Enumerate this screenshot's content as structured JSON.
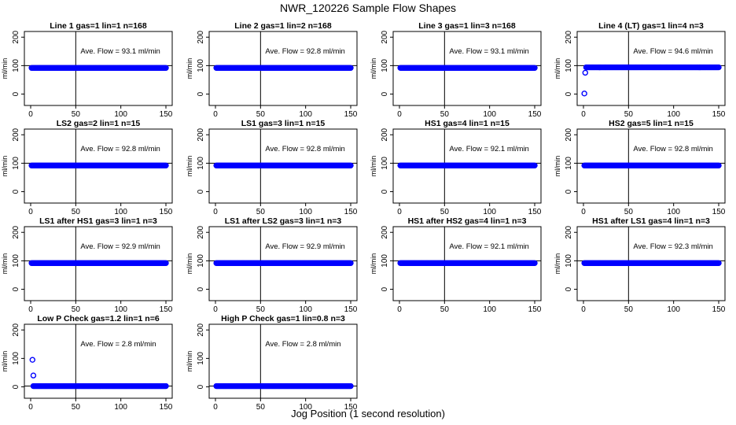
{
  "figure": {
    "title": "NWR_120226  Sample Flow Shapes",
    "xlabel": "Jog Position (1 second resolution)"
  },
  "colors": {
    "points": "#0000ff",
    "axes": "#000000",
    "background": "#ffffff"
  },
  "chart_data": [
    {
      "type": "scatter",
      "title": "Line 1 gas=1 lin=1 n=168",
      "ylabel": "ml/min",
      "annotation": "Ave. Flow = 93.1  ml/min",
      "xlim": [
        0,
        150
      ],
      "ylim": [
        -40,
        220
      ],
      "xticks": [
        "0",
        "50",
        "100",
        "150"
      ],
      "yticks": [
        "0",
        "100",
        "200"
      ],
      "vline_x": 50,
      "hline_y": 100,
      "x_range": [
        1,
        150
      ],
      "baseline_y": 92,
      "outliers": []
    },
    {
      "type": "scatter",
      "title": "Line 2 gas=1 lin=2 n=168",
      "ylabel": "ml/min",
      "annotation": "Ave. Flow = 92.8  ml/min",
      "xlim": [
        0,
        150
      ],
      "ylim": [
        -40,
        220
      ],
      "xticks": [
        "0",
        "50",
        "100",
        "150"
      ],
      "yticks": [
        "0",
        "100",
        "200"
      ],
      "vline_x": 50,
      "hline_y": 100,
      "x_range": [
        1,
        150
      ],
      "baseline_y": 92,
      "outliers": []
    },
    {
      "type": "scatter",
      "title": "Line 3 gas=1 lin=3 n=168",
      "ylabel": "ml/min",
      "annotation": "Ave. Flow = 93.1  ml/min",
      "xlim": [
        0,
        150
      ],
      "ylim": [
        -40,
        220
      ],
      "xticks": [
        "0",
        "50",
        "100",
        "150"
      ],
      "yticks": [
        "0",
        "100",
        "200"
      ],
      "vline_x": 50,
      "hline_y": 100,
      "x_range": [
        1,
        150
      ],
      "baseline_y": 92,
      "outliers": []
    },
    {
      "type": "scatter",
      "title": "Line 4 (LT) gas=1 lin=4 n=3",
      "ylabel": "ml/min",
      "annotation": "Ave. Flow = 94.6  ml/min",
      "xlim": [
        0,
        150
      ],
      "ylim": [
        -40,
        220
      ],
      "xticks": [
        "0",
        "50",
        "100",
        "150"
      ],
      "yticks": [
        "0",
        "100",
        "200"
      ],
      "vline_x": 50,
      "hline_y": 100,
      "x_range": [
        3,
        150
      ],
      "baseline_y": 94,
      "outliers": [
        [
          1,
          2
        ],
        [
          2,
          75
        ]
      ]
    },
    {
      "type": "scatter",
      "title": "LS2 gas=2 lin=1 n=15",
      "ylabel": "ml/min",
      "annotation": "Ave. Flow = 92.8  ml/min",
      "xlim": [
        0,
        150
      ],
      "ylim": [
        -40,
        220
      ],
      "xticks": [
        "0",
        "50",
        "100",
        "150"
      ],
      "yticks": [
        "0",
        "100",
        "200"
      ],
      "vline_x": 50,
      "hline_y": 100,
      "x_range": [
        1,
        150
      ],
      "baseline_y": 92,
      "outliers": []
    },
    {
      "type": "scatter",
      "title": "LS1 gas=3 lin=1 n=15",
      "ylabel": "ml/min",
      "annotation": "Ave. Flow = 92.8  ml/min",
      "xlim": [
        0,
        150
      ],
      "ylim": [
        -40,
        220
      ],
      "xticks": [
        "0",
        "50",
        "100",
        "150"
      ],
      "yticks": [
        "0",
        "100",
        "200"
      ],
      "vline_x": 50,
      "hline_y": 100,
      "x_range": [
        1,
        150
      ],
      "baseline_y": 92,
      "outliers": []
    },
    {
      "type": "scatter",
      "title": "HS1 gas=4 lin=1 n=15",
      "ylabel": "ml/min",
      "annotation": "Ave. Flow = 92.1  ml/min",
      "xlim": [
        0,
        150
      ],
      "ylim": [
        -40,
        220
      ],
      "xticks": [
        "0",
        "50",
        "100",
        "150"
      ],
      "yticks": [
        "0",
        "100",
        "200"
      ],
      "vline_x": 50,
      "hline_y": 100,
      "x_range": [
        1,
        150
      ],
      "baseline_y": 92,
      "outliers": []
    },
    {
      "type": "scatter",
      "title": "HS2 gas=5 lin=1 n=15",
      "ylabel": "ml/min",
      "annotation": "Ave. Flow = 92.8  ml/min",
      "xlim": [
        0,
        150
      ],
      "ylim": [
        -40,
        220
      ],
      "xticks": [
        "0",
        "50",
        "100",
        "150"
      ],
      "yticks": [
        "0",
        "100",
        "200"
      ],
      "vline_x": 50,
      "hline_y": 100,
      "x_range": [
        1,
        150
      ],
      "baseline_y": 92,
      "outliers": []
    },
    {
      "type": "scatter",
      "title": "LS1 after HS1 gas=3 lin=1 n=3",
      "ylabel": "ml/min",
      "annotation": "Ave. Flow = 92.9  ml/min",
      "xlim": [
        0,
        150
      ],
      "ylim": [
        -40,
        220
      ],
      "xticks": [
        "0",
        "50",
        "100",
        "150"
      ],
      "yticks": [
        "0",
        "100",
        "200"
      ],
      "vline_x": 50,
      "hline_y": 100,
      "x_range": [
        1,
        150
      ],
      "baseline_y": 92,
      "outliers": []
    },
    {
      "type": "scatter",
      "title": "LS1 after LS2 gas=3 lin=1 n=3",
      "ylabel": "ml/min",
      "annotation": "Ave. Flow = 92.9  ml/min",
      "xlim": [
        0,
        150
      ],
      "ylim": [
        -40,
        220
      ],
      "xticks": [
        "0",
        "50",
        "100",
        "150"
      ],
      "yticks": [
        "0",
        "100",
        "200"
      ],
      "vline_x": 50,
      "hline_y": 100,
      "x_range": [
        1,
        150
      ],
      "baseline_y": 92,
      "outliers": []
    },
    {
      "type": "scatter",
      "title": "HS1 after HS2 gas=4 lin=1 n=3",
      "ylabel": "ml/min",
      "annotation": "Ave. Flow = 92.1  ml/min",
      "xlim": [
        0,
        150
      ],
      "ylim": [
        -40,
        220
      ],
      "xticks": [
        "0",
        "50",
        "100",
        "150"
      ],
      "yticks": [
        "0",
        "100",
        "200"
      ],
      "vline_x": 50,
      "hline_y": 100,
      "x_range": [
        1,
        150
      ],
      "baseline_y": 92,
      "outliers": []
    },
    {
      "type": "scatter",
      "title": "HS1 after LS1 gas=4 lin=1 n=3",
      "ylabel": "ml/min",
      "annotation": "Ave. Flow = 92.3  ml/min",
      "xlim": [
        0,
        150
      ],
      "ylim": [
        -40,
        220
      ],
      "xticks": [
        "0",
        "50",
        "100",
        "150"
      ],
      "yticks": [
        "0",
        "100",
        "200"
      ],
      "vline_x": 50,
      "hline_y": 100,
      "x_range": [
        1,
        150
      ],
      "baseline_y": 92,
      "outliers": []
    },
    {
      "type": "scatter",
      "title": "Low P Check gas=1.2 lin=1 n=6",
      "ylabel": "ml/min",
      "annotation": "Ave. Flow = 2.8  ml/min",
      "xlim": [
        0,
        150
      ],
      "ylim": [
        -40,
        220
      ],
      "xticks": [
        "0",
        "50",
        "100",
        "150"
      ],
      "yticks": [
        "0",
        "100",
        "200"
      ],
      "vline_x": 50,
      "hline_y": 2.8,
      "x_range": [
        3,
        150
      ],
      "baseline_y": 2.8,
      "outliers": [
        [
          2,
          95
        ],
        [
          3,
          40
        ]
      ]
    },
    {
      "type": "scatter",
      "title": "High P Check gas=1 lin=0.8 n=3",
      "ylabel": "ml/min",
      "annotation": "Ave. Flow = 2.8  ml/min",
      "xlim": [
        0,
        150
      ],
      "ylim": [
        -40,
        220
      ],
      "xticks": [
        "0",
        "50",
        "100",
        "150"
      ],
      "yticks": [
        "0",
        "100",
        "200"
      ],
      "vline_x": 50,
      "hline_y": 2.8,
      "x_range": [
        1,
        150
      ],
      "baseline_y": 2.8,
      "outliers": []
    }
  ]
}
